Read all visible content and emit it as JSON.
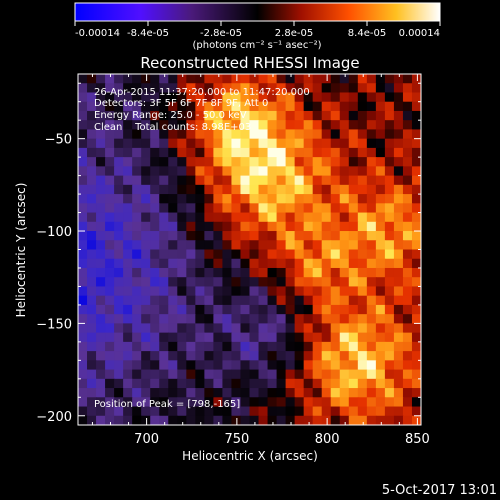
{
  "colorbar": {
    "tick_labels": [
      "-0.00014",
      "-8.4e-05",
      "-2.8e-05",
      "2.8e-05",
      "8.4e-05",
      "0.00014"
    ],
    "tick_values": [
      -0.00014,
      -8.4e-05,
      -2.8e-05,
      2.8e-05,
      8.4e-05,
      0.00014
    ],
    "range": [
      -0.00014,
      0.00014
    ],
    "unit_label": "(photons cm⁻² s⁻¹ asec⁻²)"
  },
  "title": "Reconstructed RHESSI Image",
  "info": {
    "time_range": "26-Apr-2015 11:37:20.000 to 11:47:20.000",
    "detectors": "Detectors: 3F 5F 6F 7F 8F 9F, Att 0",
    "energy": "Energy Range: 25.0 - 50.0 keV",
    "method_counts": "Clean    Total counts: 8.98E+03"
  },
  "peak": "Position of Peak = [798,-165]",
  "footer_date": "5-Oct-2017 13:01",
  "chart_data": {
    "type": "heatmap",
    "title": "Reconstructed RHESSI Image",
    "xlabel": "Heliocentric X (arcsec)",
    "ylabel": "Heliocentric Y (arcsec)",
    "xlim": [
      662,
      852
    ],
    "ylim": [
      -205,
      -15
    ],
    "x_ticks": [
      700,
      750,
      800,
      850
    ],
    "x_tick_labels": [
      "700",
      "750",
      "800",
      "850"
    ],
    "y_ticks": [
      -50,
      -100,
      -150,
      -200
    ],
    "y_tick_labels": [
      "−50",
      "−100",
      "−150",
      "−200"
    ],
    "value_range": [
      -0.00014,
      0.00014
    ],
    "colormap": [
      "#0000ff",
      "#8030c0",
      "#000000",
      "#c01000",
      "#ff7000",
      "#ffff60",
      "#ffffff"
    ],
    "peak": [
      798,
      -165
    ],
    "grid": false
  }
}
